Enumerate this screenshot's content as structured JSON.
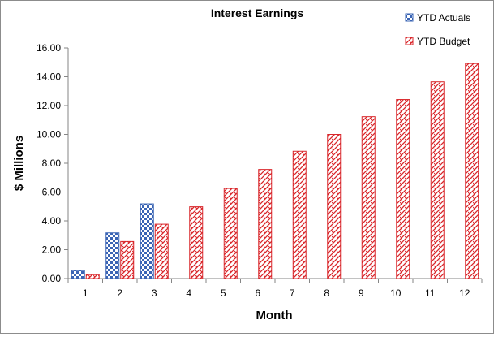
{
  "chart_data": {
    "type": "bar",
    "title": "Interest Earnings",
    "xlabel": "Month",
    "ylabel": "$ Millions",
    "categories": [
      "1",
      "2",
      "3",
      "4",
      "5",
      "6",
      "7",
      "8",
      "9",
      "10",
      "11",
      "12"
    ],
    "ylim": [
      0,
      16
    ],
    "yticks": [
      0,
      2,
      4,
      6,
      8,
      10,
      12,
      14,
      16
    ],
    "ytick_labels": [
      "0.00",
      "2.00",
      "4.00",
      "6.00",
      "8.00",
      "10.00",
      "12.00",
      "14.00",
      "16.00"
    ],
    "grid": "none",
    "legend": "top-right",
    "series": [
      {
        "name": "YTD Actuals",
        "color": "#3a64b4",
        "pattern": "checkerboard",
        "values": [
          0.55,
          3.17,
          5.18,
          null,
          null,
          null,
          null,
          null,
          null,
          null,
          null,
          null
        ]
      },
      {
        "name": "YTD Budget",
        "color": "#d9262a",
        "pattern": "diagonal-weave",
        "values": [
          0.27,
          2.57,
          3.77,
          4.98,
          6.25,
          7.57,
          8.83,
          10.0,
          11.23,
          12.42,
          13.65,
          14.92
        ]
      }
    ]
  }
}
